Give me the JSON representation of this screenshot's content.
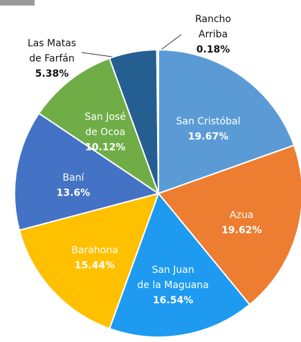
{
  "chart_data": {
    "type": "pie",
    "categories": [
      "San Cristóbal",
      "Azua",
      "San Juan\nde la Maguana",
      "Barahona",
      "Baní",
      "San José\nde Ocoa",
      "Las Matas\nde Farfán",
      "Rancho\nArriba"
    ],
    "values": [
      19.67,
      19.62,
      16.54,
      15.44,
      13.6,
      10.12,
      5.38,
      0.18
    ],
    "value_labels": [
      "19.67%",
      "19.62%",
      "16.54%",
      "15.44%",
      "13.6%",
      "10.12%",
      "5.38%",
      "0.18%"
    ],
    "colors": [
      "#5b9bd5",
      "#ed7d31",
      "#1e9bf0",
      "#ffc000",
      "#4472c4",
      "#70ad47",
      "#255e91",
      "#b0b0b0"
    ]
  }
}
